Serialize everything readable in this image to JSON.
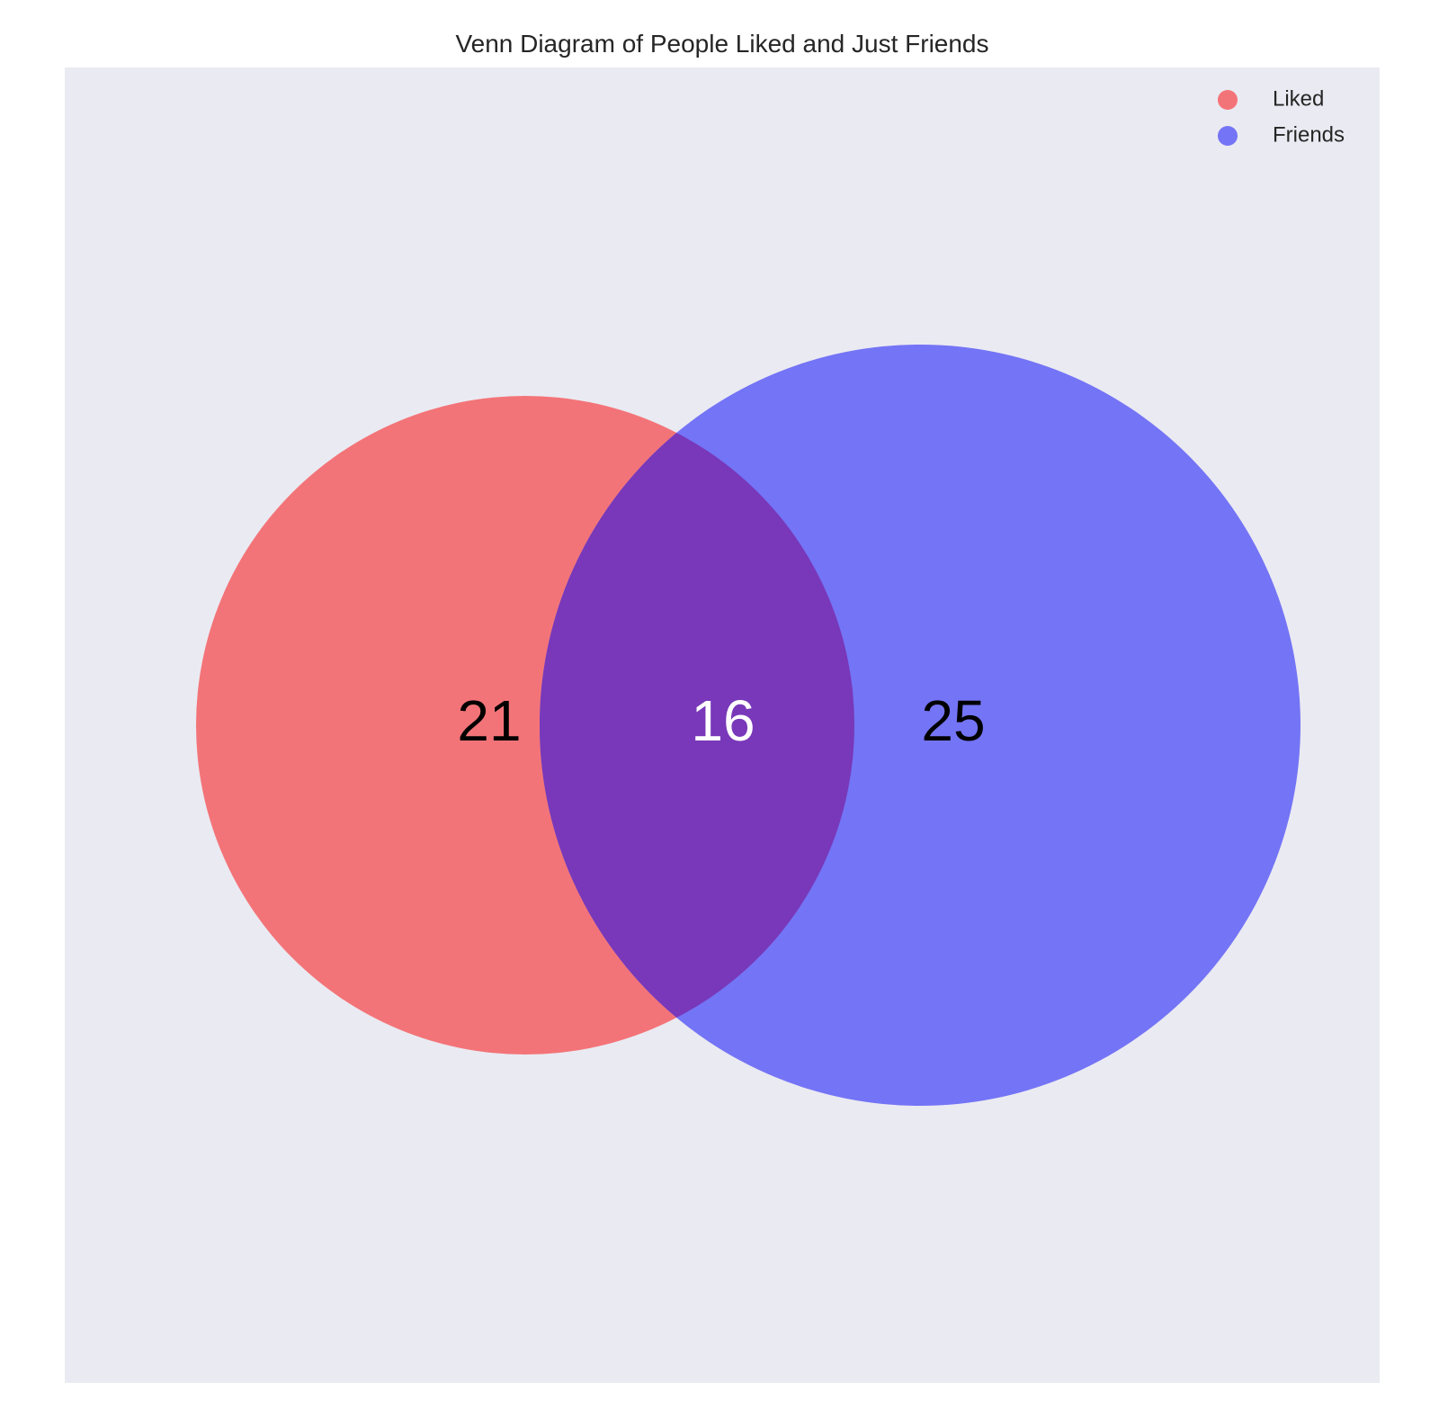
{
  "chart_data": {
    "type": "venn",
    "title": "Venn Diagram of People Liked and Just Friends",
    "sets": [
      {
        "name": "Liked",
        "color": "#f0555b",
        "only_count": 21
      },
      {
        "name": "Friends",
        "color": "#5a5af5",
        "only_count": 25
      }
    ],
    "intersection": {
      "count": 16,
      "color": "#7a38b8"
    },
    "labels": {
      "liked_only": "21",
      "intersection": "16",
      "friends_only": "25"
    },
    "legend": {
      "position": "top-right",
      "entries": [
        "Liked",
        "Friends"
      ]
    },
    "background_color": "#eaeaf2"
  }
}
